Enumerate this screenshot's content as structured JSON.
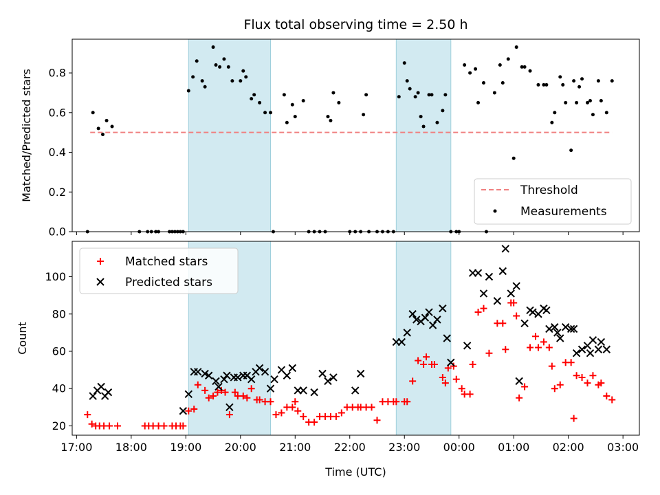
{
  "chart_data": [
    {
      "type": "scatter",
      "title": "Flux total observing time = 2.50 h",
      "xlabel": "",
      "ylabel": "Matched/Predicted stars",
      "xlim": [
        16.92,
        27.3
      ],
      "ylim": [
        0,
        0.97
      ],
      "yticks": [
        0.0,
        0.2,
        0.4,
        0.6,
        0.8
      ],
      "ytick_labels": [
        "0.0",
        "0.2",
        "0.4",
        "0.6",
        "0.8"
      ],
      "grid": false,
      "legend_position": "lower-right",
      "shaded_intervals": [
        [
          19.05,
          20.55
        ],
        [
          22.85,
          23.85
        ]
      ],
      "series": [
        {
          "name": "Threshold",
          "style": "dashed-line",
          "color": "#f08080",
          "x": [
            17.25,
            26.8
          ],
          "y": [
            0.5,
            0.5
          ]
        },
        {
          "name": "Measurements",
          "style": "dot",
          "color": "#000000",
          "x": [
            17.2,
            17.3,
            17.4,
            17.48,
            17.55,
            17.65,
            18.15,
            18.3,
            18.37,
            18.45,
            18.5,
            18.7,
            18.75,
            18.8,
            18.85,
            18.9,
            18.95,
            19.05,
            19.13,
            19.2,
            19.3,
            19.35,
            19.5,
            19.55,
            19.62,
            19.7,
            19.78,
            19.85,
            20.0,
            20.05,
            20.1,
            20.2,
            20.25,
            20.35,
            20.45,
            20.55,
            20.6,
            20.8,
            20.85,
            20.95,
            21.0,
            21.15,
            21.25,
            21.35,
            21.45,
            21.55,
            21.6,
            21.65,
            21.7,
            21.8,
            22.0,
            22.1,
            22.2,
            22.25,
            22.3,
            22.35,
            22.5,
            22.6,
            22.7,
            22.8,
            22.9,
            23.0,
            23.05,
            23.1,
            23.2,
            23.25,
            23.3,
            23.35,
            23.45,
            23.5,
            23.6,
            23.7,
            23.75,
            23.85,
            23.95,
            24.0,
            24.1,
            24.2,
            24.3,
            24.35,
            24.45,
            24.5,
            24.65,
            24.75,
            24.8,
            24.9,
            25.0,
            25.05,
            25.15,
            25.2,
            25.3,
            25.45,
            25.55,
            25.6,
            25.7,
            25.75,
            25.85,
            25.9,
            25.95,
            26.05,
            26.1,
            26.15,
            26.2,
            26.25,
            26.35,
            26.4,
            26.45,
            26.55,
            26.6,
            26.7,
            26.8
          ],
          "y": [
            0,
            0.6,
            0.52,
            0.49,
            0.56,
            0.53,
            0,
            0,
            0,
            0,
            0,
            0,
            0,
            0,
            0,
            0,
            0,
            0.71,
            0.78,
            0.86,
            0.76,
            0.73,
            0.93,
            0.84,
            0.83,
            0.87,
            0.83,
            0.76,
            0.76,
            0.81,
            0.78,
            0.67,
            0.69,
            0.65,
            0.6,
            0.6,
            0,
            0.69,
            0.55,
            0.64,
            0.58,
            0.66,
            0,
            0,
            0,
            0,
            0.58,
            0.56,
            0.7,
            0.65,
            0,
            0,
            0,
            0.59,
            0.69,
            0,
            0,
            0,
            0,
            0,
            0.68,
            0.85,
            0.76,
            0.72,
            0.68,
            0.7,
            0.58,
            0.53,
            0.69,
            0.69,
            0.55,
            0.61,
            0.69,
            0,
            0,
            0,
            0.84,
            0.8,
            0.82,
            0.65,
            0.75,
            0,
            0.7,
            0.84,
            0.75,
            0.87,
            0.37,
            0.93,
            0.83,
            0.83,
            0.81,
            0.74,
            0.74,
            0.74,
            0.55,
            0.6,
            0.78,
            0.74,
            0.65,
            0.41,
            0.76,
            0.65,
            0.73,
            0.77,
            0.65,
            0.66,
            0.59,
            0.76,
            0.66,
            0.6,
            0.76
          ]
        }
      ]
    },
    {
      "type": "scatter",
      "title": "",
      "xlabel": "Time (UTC)",
      "ylabel": "Count",
      "xlim": [
        16.92,
        27.3
      ],
      "ylim": [
        15,
        119
      ],
      "yticks": [
        20,
        40,
        60,
        80,
        100
      ],
      "ytick_labels": [
        "20",
        "40",
        "60",
        "80",
        "100"
      ],
      "xticks": [
        17,
        18,
        19,
        20,
        21,
        22,
        23,
        24,
        25,
        26,
        27
      ],
      "xtick_labels": [
        "17:00",
        "18:00",
        "19:00",
        "20:00",
        "21:00",
        "22:00",
        "23:00",
        "00:00",
        "01:00",
        "02:00",
        "03:00"
      ],
      "grid": false,
      "legend_position": "upper-left",
      "shaded_intervals": [
        [
          19.05,
          20.55
        ],
        [
          22.85,
          23.85
        ]
      ],
      "series": [
        {
          "name": "Matched stars",
          "style": "plus",
          "color": "#ff0000",
          "x": [
            17.2,
            17.28,
            17.35,
            17.42,
            17.5,
            17.6,
            17.75,
            18.25,
            18.32,
            18.4,
            18.5,
            18.6,
            18.75,
            18.82,
            18.9,
            18.95,
            19.05,
            19.15,
            19.22,
            19.35,
            19.42,
            19.5,
            19.58,
            19.65,
            19.72,
            19.8,
            19.9,
            19.95,
            20.05,
            20.12,
            20.2,
            20.3,
            20.35,
            20.45,
            20.55,
            20.65,
            20.75,
            20.85,
            20.95,
            21.0,
            21.05,
            21.15,
            21.25,
            21.35,
            21.45,
            21.55,
            21.65,
            21.75,
            21.85,
            21.95,
            22.05,
            22.15,
            22.2,
            22.3,
            22.4,
            22.5,
            22.6,
            22.7,
            22.8,
            22.85,
            23.0,
            23.05,
            23.15,
            23.25,
            23.35,
            23.4,
            23.5,
            23.55,
            23.7,
            23.75,
            23.8,
            23.9,
            23.95,
            24.05,
            24.1,
            24.2,
            24.25,
            24.35,
            24.45,
            24.55,
            24.7,
            24.8,
            24.85,
            24.95,
            25.0,
            25.05,
            25.1,
            25.2,
            25.3,
            25.4,
            25.45,
            25.55,
            25.65,
            25.7,
            25.75,
            25.85,
            25.95,
            26.05,
            26.1,
            26.15,
            26.25,
            26.35,
            26.45,
            26.55,
            26.6,
            26.7,
            26.8
          ],
          "y": [
            26,
            21,
            20,
            20,
            20,
            20,
            20,
            20,
            20,
            20,
            20,
            20,
            20,
            20,
            20,
            20,
            28,
            29,
            42,
            39,
            35,
            36,
            38,
            39,
            38,
            26,
            38,
            36,
            36,
            35,
            40,
            34,
            34,
            33,
            33,
            26,
            27,
            30,
            30,
            33,
            28,
            25,
            22,
            22,
            25,
            25,
            25,
            25,
            27,
            30,
            30,
            30,
            30,
            30,
            30,
            23,
            33,
            33,
            33,
            33,
            33,
            33,
            44,
            55,
            53,
            57,
            53,
            53,
            46,
            43,
            51,
            52,
            45,
            40,
            37,
            37,
            53,
            81,
            83,
            59,
            75,
            75,
            61,
            86,
            86,
            79,
            35,
            41,
            62,
            68,
            62,
            65,
            62,
            52,
            40,
            42,
            54,
            54,
            24,
            47,
            46,
            43,
            47,
            42,
            43,
            36,
            34
          ]
        },
        {
          "name": "Predicted stars",
          "style": "x",
          "color": "#000000",
          "x": [
            17.3,
            17.38,
            17.45,
            17.52,
            17.58,
            18.95,
            19.05,
            19.15,
            19.22,
            19.35,
            19.42,
            19.55,
            19.6,
            19.7,
            19.75,
            19.8,
            19.88,
            19.95,
            20.05,
            20.12,
            20.2,
            20.28,
            20.35,
            20.45,
            20.55,
            20.62,
            20.75,
            20.85,
            20.95,
            21.05,
            21.15,
            21.35,
            21.5,
            21.6,
            21.7,
            22.1,
            22.2,
            22.85,
            22.95,
            23.05,
            23.15,
            23.22,
            23.3,
            23.38,
            23.45,
            23.52,
            23.6,
            23.7,
            23.78,
            23.85,
            24.15,
            24.25,
            24.35,
            24.45,
            24.55,
            24.7,
            24.8,
            24.85,
            24.95,
            25.05,
            25.1,
            25.2,
            25.3,
            25.35,
            25.45,
            25.55,
            25.6,
            25.65,
            25.75,
            25.8,
            25.85,
            25.95,
            26.05,
            26.1,
            26.15,
            26.25,
            26.35,
            26.4,
            26.45,
            26.55,
            26.6,
            26.7
          ],
          "y": [
            36,
            39,
            41,
            36,
            38,
            28,
            37,
            49,
            49,
            48,
            47,
            44,
            41,
            45,
            47,
            30,
            46,
            46,
            47,
            47,
            45,
            49,
            51,
            49,
            40,
            45,
            50,
            47,
            51,
            39,
            39,
            38,
            48,
            44,
            46,
            39,
            48,
            65,
            65,
            70,
            80,
            77,
            76,
            78,
            81,
            74,
            77,
            83,
            67,
            54,
            63,
            102,
            102,
            91,
            100,
            87,
            103,
            115,
            91,
            95,
            44,
            75,
            82,
            81,
            80,
            83,
            82,
            72,
            73,
            70,
            67,
            73,
            72,
            72,
            59,
            61,
            63,
            59,
            66,
            61,
            65,
            61
          ]
        }
      ]
    }
  ]
}
